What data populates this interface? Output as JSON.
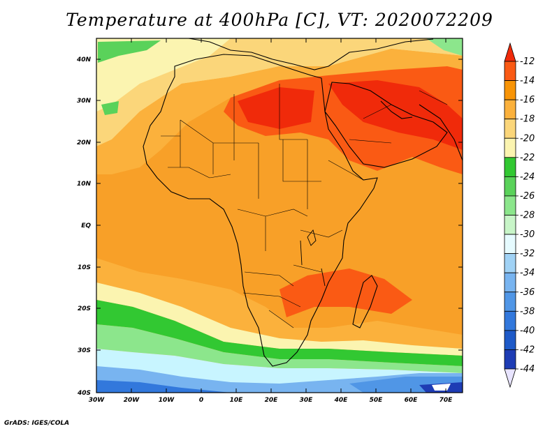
{
  "title": "Temperature at 400hPa [C], VT: 2020072209",
  "footer": "GrADS: IGES/COLA",
  "lat_labels": [
    "40N",
    "30N",
    "20N",
    "10N",
    "EQ",
    "10S",
    "20S",
    "30S",
    "40S"
  ],
  "lon_labels": [
    "30W",
    "20W",
    "10W",
    "0",
    "10E",
    "20E",
    "30E",
    "40E",
    "50E",
    "60E",
    "70E"
  ],
  "colorbar": {
    "labels": [
      "-12",
      "-14",
      "-16",
      "-18",
      "-20",
      "-22",
      "-24",
      "-26",
      "-28",
      "-30",
      "-32",
      "-34",
      "-36",
      "-38",
      "-40",
      "-42",
      "-44"
    ],
    "colors": [
      "#f02a0a",
      "#fa5a14",
      "#f89406",
      "#fbb13c",
      "#fbd67a",
      "#fbf4b0",
      "#32c832",
      "#5ad25a",
      "#8ce68c",
      "#c8f5c8",
      "#e6fbff",
      "#a0d2f5",
      "#78b4f0",
      "#5096e6",
      "#3278dc",
      "#1e5ac8",
      "#1e3cb4",
      "#0a146e"
    ]
  },
  "palette": {
    "ocean_warm": "#f8a028",
    "ocean_mid": "#fbb13c",
    "ocean_cool": "#fbd67a",
    "ocean_pale": "#fbf4b0",
    "hot": "#fa5a14",
    "hottest": "#f02a0a",
    "green": "#32c832",
    "green_light": "#8ce68c",
    "blue_pale": "#c8f5ff",
    "blue": "#5096e6",
    "blue_dark": "#1e3cb4",
    "navy": "#0a146e"
  }
}
